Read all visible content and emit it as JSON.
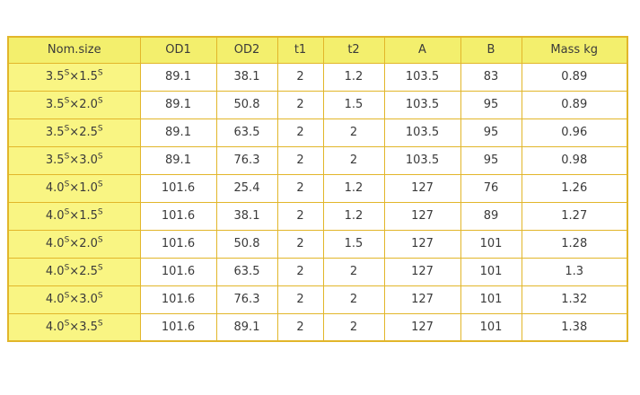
{
  "table": {
    "headers": [
      "Nom.size",
      "OD1",
      "OD2",
      "t1",
      "t2",
      "A",
      "B",
      "Mass kg"
    ],
    "superscript_mark": "S",
    "times_sign": "×",
    "rows": [
      {
        "nom_a": "3.5",
        "nom_b": "1.5",
        "values": [
          "89.1",
          "38.1",
          "2",
          "1.2",
          "103.5",
          "83",
          "0.89"
        ]
      },
      {
        "nom_a": "3.5",
        "nom_b": "2.0",
        "values": [
          "89.1",
          "50.8",
          "2",
          "1.5",
          "103.5",
          "95",
          "0.89"
        ]
      },
      {
        "nom_a": "3.5",
        "nom_b": "2.5",
        "values": [
          "89.1",
          "63.5",
          "2",
          "2",
          "103.5",
          "95",
          "0.96"
        ]
      },
      {
        "nom_a": "3.5",
        "nom_b": "3.0",
        "values": [
          "89.1",
          "76.3",
          "2",
          "2",
          "103.5",
          "95",
          "0.98"
        ]
      },
      {
        "nom_a": "4.0",
        "nom_b": "1.0",
        "values": [
          "101.6",
          "25.4",
          "2",
          "1.2",
          "127",
          "76",
          "1.26"
        ]
      },
      {
        "nom_a": "4.0",
        "nom_b": "1.5",
        "values": [
          "101.6",
          "38.1",
          "2",
          "1.2",
          "127",
          "89",
          "1.27"
        ]
      },
      {
        "nom_a": "4.0",
        "nom_b": "2.0",
        "values": [
          "101.6",
          "50.8",
          "2",
          "1.5",
          "127",
          "101",
          "1.28"
        ]
      },
      {
        "nom_a": "4.0",
        "nom_b": "2.5",
        "values": [
          "101.6",
          "63.5",
          "2",
          "2",
          "127",
          "101",
          "1.3"
        ]
      },
      {
        "nom_a": "4.0",
        "nom_b": "3.0",
        "values": [
          "101.6",
          "76.3",
          "2",
          "2",
          "127",
          "101",
          "1.32"
        ]
      },
      {
        "nom_a": "4.0",
        "nom_b": "3.5",
        "values": [
          "101.6",
          "89.1",
          "2",
          "2",
          "127",
          "101",
          "1.38"
        ]
      }
    ]
  },
  "colors": {
    "border": "#e2b62a",
    "header_bg": "#f3ef6d",
    "nom_bg": "#f9f583",
    "cell_bg": "#ffffff",
    "text": "#3a3a3a",
    "page_bg": "#ffffff"
  }
}
